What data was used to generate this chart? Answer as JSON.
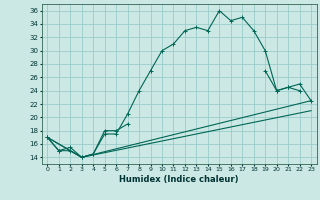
{
  "title": "",
  "xlabel": "Humidex (Indice chaleur)",
  "bg_color": "#cce8e4",
  "grid_color": "#99cccc",
  "line_color": "#006655",
  "xlim": [
    -0.5,
    23.5
  ],
  "ylim": [
    13,
    37
  ],
  "yticks": [
    14,
    16,
    18,
    20,
    22,
    24,
    26,
    28,
    30,
    32,
    34,
    36
  ],
  "xticks": [
    0,
    1,
    2,
    3,
    4,
    5,
    6,
    7,
    8,
    9,
    10,
    11,
    12,
    13,
    14,
    15,
    16,
    17,
    18,
    19,
    20,
    21,
    22,
    23
  ],
  "series1_x": [
    0,
    1,
    2,
    3,
    4,
    5,
    6,
    7,
    8,
    9,
    10,
    11,
    12,
    13,
    14,
    15,
    16,
    17,
    18,
    19,
    20,
    21,
    22
  ],
  "series1_y": [
    17.0,
    15.0,
    15.0,
    14.0,
    14.5,
    17.5,
    17.5,
    20.5,
    24.0,
    27.0,
    30.0,
    31.0,
    33.0,
    33.5,
    33.0,
    36.0,
    34.5,
    35.0,
    33.0,
    30.0,
    24.0,
    24.5,
    24.0
  ],
  "series2_x": [
    0,
    1,
    2,
    3,
    4,
    5,
    6,
    7,
    19,
    20,
    21,
    22,
    23
  ],
  "series2_y": [
    17.0,
    15.0,
    15.5,
    14.0,
    14.5,
    18.0,
    18.0,
    19.0,
    27.0,
    24.0,
    24.5,
    25.0,
    22.5
  ],
  "series3_x": [
    0,
    3,
    23
  ],
  "series3_y": [
    17.0,
    14.0,
    22.5
  ],
  "series4_x": [
    0,
    3,
    23
  ],
  "series4_y": [
    17.0,
    14.0,
    21.0
  ]
}
